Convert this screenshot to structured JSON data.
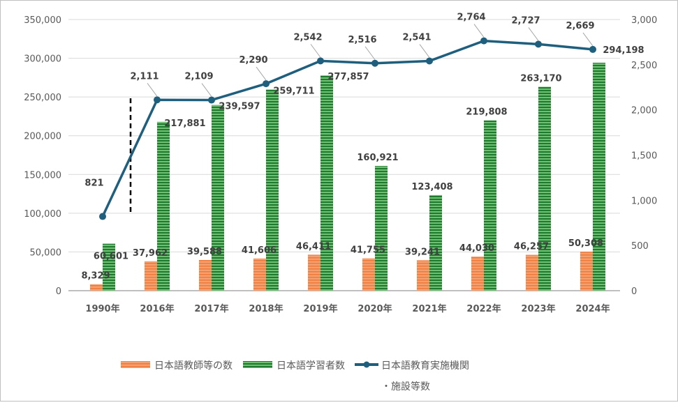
{
  "chart_data": {
    "type": "bar",
    "categories": [
      "1990年",
      "2016年",
      "2017年",
      "2018年",
      "2019年",
      "2020年",
      "2021年",
      "2022年",
      "2023年",
      "2024年"
    ],
    "series": [
      {
        "name": "日本語教師等の数",
        "kind": "bar",
        "axis": "left",
        "color": "#f28a4e",
        "values": [
          8329,
          37962,
          39588,
          41606,
          46411,
          41755,
          39241,
          44030,
          46257,
          50308
        ],
        "labels": [
          "8,329",
          "37,962",
          "39,588",
          "41,606",
          "46,411",
          "41,755",
          "39,241",
          "44,030",
          "46,257",
          "50,308"
        ]
      },
      {
        "name": "日本語学習者数",
        "kind": "bar",
        "axis": "left",
        "color": "#2f8a3b",
        "values": [
          60601,
          217881,
          239597,
          259711,
          277857,
          160921,
          123408,
          219808,
          263170,
          294198
        ],
        "labels": [
          "60,601",
          "217,881",
          "239,597",
          "259,711",
          "277,857",
          "160,921",
          "123,408",
          "219,808",
          "263,170",
          "294,198"
        ]
      },
      {
        "name": "日本語教育実施機関",
        "name_line2": "・施設等数",
        "kind": "line",
        "axis": "right",
        "color": "#1f5f7e",
        "values": [
          821,
          2111,
          2109,
          2290,
          2542,
          2516,
          2541,
          2764,
          2727,
          2669
        ],
        "labels": [
          "821",
          "2,111",
          "2,109",
          "2,290",
          "2,542",
          "2,516",
          "2,541",
          "2,764",
          "2,727",
          "2,669"
        ]
      }
    ],
    "left_axis": {
      "ylim": [
        0,
        350000
      ],
      "ticks": [
        "0",
        "50,000",
        "100,000",
        "150,000",
        "200,000",
        "250,000",
        "300,000",
        "350,000"
      ]
    },
    "right_axis": {
      "ylim": [
        0,
        3000
      ],
      "ticks": [
        "0",
        "500",
        "1,000",
        "1,500",
        "2,000",
        "2,500",
        "3,000"
      ]
    },
    "grid": true,
    "legend": "bottom",
    "annotation": "dashed break line between 1990年 and 2016年"
  }
}
